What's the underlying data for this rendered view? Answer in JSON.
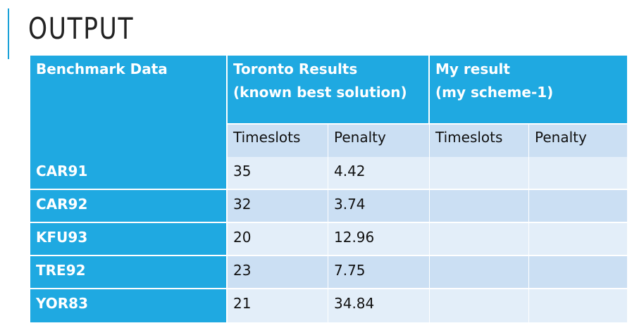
{
  "title": "OUTPUT",
  "colors": {
    "accent": "#1fa9e1",
    "row_light": "#e3eef9",
    "row_mid": "#cbdff3",
    "text_dark": "#111111"
  },
  "table": {
    "header": {
      "benchmark": "Benchmark Data",
      "toronto_line1": "Toronto Results",
      "toronto_line2": "(known best solution)",
      "mine_line1": "My result",
      "mine_line2": "(my scheme-1)"
    },
    "subheaders": [
      "Timeslots",
      "Penalty",
      "Timeslots",
      "Penalty"
    ],
    "rows": [
      {
        "name": "CAR91",
        "timeslots": "35",
        "penalty": "4.42",
        "my_timeslots": "",
        "my_penalty": ""
      },
      {
        "name": "CAR92",
        "timeslots": "32",
        "penalty": "3.74",
        "my_timeslots": "",
        "my_penalty": ""
      },
      {
        "name": "KFU93",
        "timeslots": "20",
        "penalty": "12.96",
        "my_timeslots": "",
        "my_penalty": ""
      },
      {
        "name": "TRE92",
        "timeslots": "23",
        "penalty": "7.75",
        "my_timeslots": "",
        "my_penalty": ""
      },
      {
        "name": "YOR83",
        "timeslots": "21",
        "penalty": "34.84",
        "my_timeslots": "",
        "my_penalty": ""
      }
    ]
  }
}
